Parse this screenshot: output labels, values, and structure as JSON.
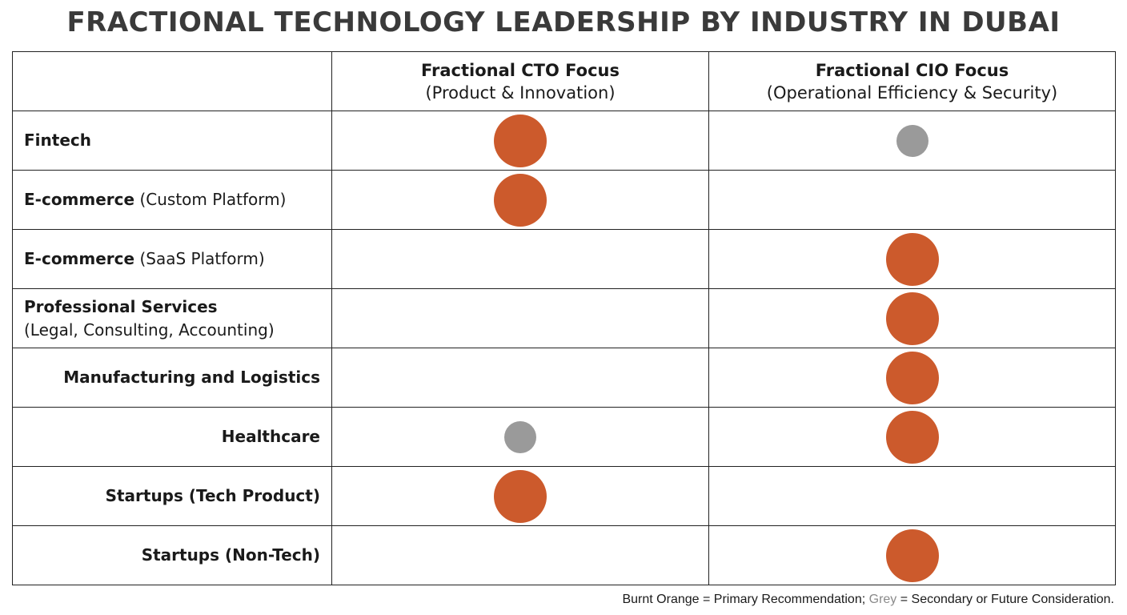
{
  "title": "FRACTIONAL TECHNOLOGY LEADERSHIP BY INDUSTRY IN DUBAI",
  "colors": {
    "primary": "#CC5A2C",
    "secondary": "#9A9A9A"
  },
  "chart_data": {
    "type": "table",
    "columns": [
      {
        "title": "Fractional CTO Focus",
        "subtitle": "(Product & Innovation)"
      },
      {
        "title": "Fractional CIO Focus",
        "subtitle": "(Operational Efficiency & Security)"
      }
    ],
    "rows": [
      {
        "bold": "Fintech",
        "normal": "",
        "align": "left",
        "values": [
          "primary",
          "secondary"
        ]
      },
      {
        "bold": "E-commerce",
        "normal": " (Custom Platform)",
        "align": "left",
        "values": [
          "primary",
          ""
        ]
      },
      {
        "bold": "E-commerce",
        "normal": " (SaaS Platform)",
        "align": "left",
        "values": [
          "",
          "primary"
        ]
      },
      {
        "bold": "Professional Services",
        "normal": "(Legal, Consulting, Accounting)",
        "align": "left",
        "break": true,
        "values": [
          "",
          "primary"
        ]
      },
      {
        "bold": "Manufacturing and Logistics",
        "normal": "",
        "align": "right",
        "values": [
          "",
          "primary"
        ]
      },
      {
        "bold": "Healthcare",
        "normal": "",
        "align": "right",
        "values": [
          "secondary",
          "primary"
        ]
      },
      {
        "bold": "Startups (Tech Product)",
        "normal": "",
        "align": "right",
        "values": [
          "primary",
          ""
        ]
      },
      {
        "bold": "Startups (Non-Tech)",
        "normal": "",
        "align": "right",
        "values": [
          "",
          "primary"
        ]
      }
    ]
  },
  "legend": {
    "primary_text": "Burnt Orange = Primary Recommendation; ",
    "secondary_word": "Grey",
    "secondary_text": " = Secondary or Future Consideration."
  }
}
